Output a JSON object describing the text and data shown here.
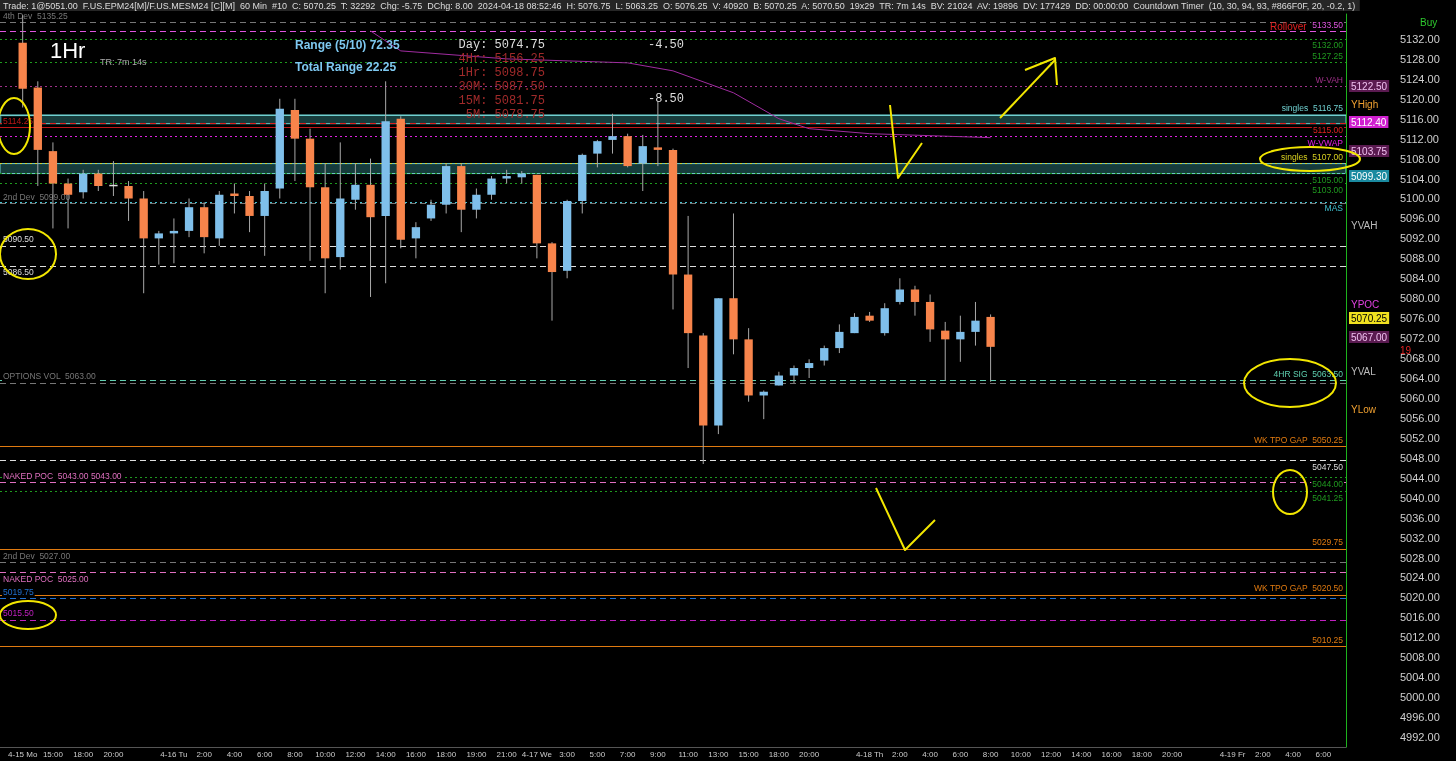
{
  "chart_data": {
    "type": "candlestick",
    "title": "1Hr",
    "subtitle": "Trade: 1@5051.00  F.US.EPM24[M]/F.US.MESM24 [C][M]  60 Min  #10  C: 5070.25  T: 32292  Chg: -5.75  DChg: 8.00  2024-04-18 08:52:46  H: 5076.75  L: 5063.25  O: 5076.25  V: 40920  B: 5070.25  A: 5070.50  19x29  TR: 7m 14s  BV: 21024  AV: 19896  DV: 177429  DD: 00:00:00  Countdown Timer  (10, 30, 94, 93, #866F0F, 20, -0.2, 1)",
    "annotations": [
      "TR: 7m 14s",
      "Range (5/10) 72.35",
      "Total Range 22.25",
      "Day: 5074.75",
      "4Hr: 5156.25",
      "1Hr: 5098.75",
      "30M: 5087.50",
      "15M: 5081.75",
      "5M: 5078.75",
      "-4.50",
      "-8.50",
      "Buy",
      "Rollover",
      "19",
      "5122.50",
      "YHigh",
      "5112.40",
      "5103.75",
      "5099.30",
      "YVAH",
      "YPOC",
      "5070.25",
      "5067.00",
      "YVAL",
      "YLow"
    ],
    "categories": [
      null,
      "4-15 Mo",
      null,
      "15:00",
      null,
      "18:00",
      null,
      "20:00",
      null,
      null,
      null,
      "4-16 Tu",
      null,
      "2:00",
      null,
      "4:00",
      null,
      "6:00",
      null,
      "8:00",
      null,
      "10:00",
      null,
      "12:00",
      null,
      "14:00",
      null,
      "16:00",
      null,
      "18:00",
      null,
      "19:00",
      null,
      "21:00",
      null,
      "4-17 We",
      null,
      "3:00",
      null,
      "5:00",
      null,
      "7:00",
      null,
      "9:00",
      null,
      "11:00",
      null,
      "13:00",
      null,
      "15:00",
      null,
      "18:00",
      null,
      "20:00",
      null,
      null,
      null,
      "4-18 Th",
      null,
      "2:00",
      null,
      "4:00",
      null,
      "6:00",
      null,
      "8:00",
      null,
      "10:00",
      null,
      "12:00",
      null,
      "14:00",
      null,
      "16:00",
      null,
      "18:00",
      null,
      "20:00",
      null,
      null,
      null,
      "4-19 Fr",
      null,
      "2:00",
      null,
      "4:00",
      null,
      "6:00",
      null
    ],
    "ohlc": [
      null,
      [
        5131.25,
        5136.75,
        5118.25,
        5122
      ],
      [
        5122.25,
        5123.5,
        5102.5,
        5109.75
      ],
      [
        5109.5,
        5111.25,
        5094,
        5103
      ],
      [
        5103,
        5104,
        5094,
        5100.75
      ],
      [
        5101.25,
        5105.75,
        5100,
        5105
      ],
      [
        5105,
        5105.75,
        5101.5,
        5102.5
      ],
      [
        5102.75,
        5107.5,
        5100.5,
        5102.75
      ],
      [
        5102.5,
        5103.5,
        5095.5,
        5100
      ],
      [
        5100,
        5101.5,
        5081,
        5092
      ],
      [
        5092,
        5093.5,
        5086.75,
        5093
      ],
      [
        5093,
        5096,
        5087,
        5093.5
      ],
      [
        5093.5,
        5100,
        5092.25,
        5098.25
      ],
      [
        5098.25,
        5099.25,
        5089,
        5092.25
      ],
      [
        5092,
        5101.5,
        5090.5,
        5100.75
      ],
      [
        5101,
        5103,
        5097,
        5100.5
      ],
      [
        5100.5,
        5101.5,
        5093.25,
        5096.5
      ],
      [
        5096.5,
        5103,
        5088.5,
        5101.5
      ],
      [
        5102,
        5120,
        5100,
        5118
      ],
      [
        5117.75,
        5120,
        5103.5,
        5112
      ],
      [
        5112,
        5114,
        5087.5,
        5102.25
      ],
      [
        5102.25,
        5107,
        5081,
        5088
      ],
      [
        5088.25,
        5111.25,
        5085.75,
        5100
      ],
      [
        5099.75,
        5107,
        5097.75,
        5102.75
      ],
      [
        5102.75,
        5108,
        5080.25,
        5096.25
      ],
      [
        5096.5,
        5123.5,
        5083,
        5115.5
      ],
      [
        5116,
        5116.5,
        5090,
        5091.75
      ],
      [
        5092,
        5095.25,
        5088,
        5094.25
      ],
      [
        5096,
        5099.75,
        5095.5,
        5098.75
      ],
      [
        5098.75,
        5107,
        5097,
        5106.5
      ],
      [
        5106.5,
        5107,
        5093.25,
        5097.75
      ],
      [
        5097.75,
        5102,
        5096,
        5100.75
      ],
      [
        5100.75,
        5104.5,
        5099.75,
        5104
      ],
      [
        5104,
        5105.75,
        5103,
        5104.5
      ],
      [
        5104.25,
        5105.5,
        5103,
        5105
      ],
      [
        5104.75,
        5104.75,
        5088,
        5091
      ],
      [
        5091,
        5091.25,
        5075.5,
        5085.25
      ],
      [
        5085.5,
        5099.75,
        5084,
        5099.5
      ],
      [
        5099.5,
        5109,
        5097,
        5108.75
      ],
      [
        5109,
        5111.75,
        5106.25,
        5111.5
      ],
      [
        5111.75,
        5117,
        5109,
        5112.5
      ],
      [
        5112.5,
        5113,
        5106.25,
        5106.5
      ],
      [
        5107,
        5112.75,
        5101.5,
        5110.5
      ],
      [
        5110.25,
        5119.5,
        5106.5,
        5109.75
      ],
      [
        5109.75,
        5110,
        5077.75,
        5084.75
      ],
      [
        5084.75,
        5096.5,
        5066,
        5073
      ],
      [
        5072.5,
        5073,
        5046.75,
        5054.5
      ],
      [
        5054.5,
        5080,
        5052.75,
        5080
      ],
      [
        5080,
        5097,
        5068.75,
        5071.75
      ],
      [
        5071.75,
        5074,
        5059.25,
        5060.5
      ],
      [
        5060.5,
        5061.5,
        5055.75,
        5061.25
      ],
      [
        5062.5,
        5065.25,
        5062.5,
        5064.5
      ],
      [
        5064.5,
        5066.5,
        5063,
        5066
      ],
      [
        5066,
        5067.75,
        5064,
        5067
      ],
      [
        5067.5,
        5070.5,
        5066.5,
        5070
      ],
      [
        5070,
        5074.75,
        5069,
        5073.25
      ],
      [
        5073,
        5077,
        5073,
        5076.25
      ],
      [
        5076.5,
        5077.25,
        5075.25,
        5075.5
      ],
      [
        5073,
        5079,
        5072.5,
        5078
      ],
      [
        5079.25,
        5084,
        5078.75,
        5081.75
      ],
      [
        5081.75,
        5082.5,
        5076.5,
        5079.25
      ],
      [
        5079.25,
        5080.75,
        5071.25,
        5073.75
      ],
      [
        5073.5,
        5075.25,
        5063.5,
        5071.75
      ],
      [
        5071.75,
        5076.5,
        5067.25,
        5073.25
      ],
      [
        5073.25,
        5079.25,
        5070.5,
        5075.5
      ],
      [
        5076.25,
        5076.75,
        5063.25,
        5070.25
      ],
      null,
      null,
      null,
      null,
      null,
      null,
      null,
      null,
      null,
      null,
      null,
      null,
      null,
      null,
      null,
      null,
      null,
      null,
      null,
      null,
      null,
      null,
      null
    ],
    "colors": [
      null,
      "#f7844b",
      "#f7844b",
      "#f7844b",
      "#f7844b",
      "#7fbfea",
      "#f7844b",
      "#dcdcdc",
      "#f7844b",
      "#f7844b",
      "#7fbfea",
      "#7fbfea",
      "#7fbfea",
      "#f7844b",
      "#7fbfea",
      "#f7844b",
      "#f7844b",
      "#7fbfea",
      "#7fbfea",
      "#f7844b",
      "#f7844b",
      "#f7844b",
      "#7fbfea",
      "#7fbfea",
      "#f7844b",
      "#7fbfea",
      "#f7844b",
      "#7fbfea",
      "#7fbfea",
      "#7fbfea",
      "#f7844b",
      "#7fbfea",
      "#7fbfea",
      "#7fbfea",
      "#7fbfea",
      "#f7844b",
      "#f7844b",
      "#7fbfea",
      "#7fbfea",
      "#7fbfea",
      "#7fbfea",
      "#f7844b",
      "#7fbfea",
      "#f7844b",
      "#f7844b",
      "#f7844b",
      "#f7844b",
      "#7fbfea",
      "#f7844b",
      "#f7844b",
      "#7fbfea",
      "#7fbfea",
      "#7fbfea",
      "#7fbfea",
      "#7fbfea",
      "#7fbfea",
      "#7fbfea",
      "#f7844b",
      "#7fbfea",
      "#7fbfea",
      "#f7844b",
      "#f7844b",
      "#f7844b",
      "#7fbfea",
      "#7fbfea",
      "#f7844b",
      null,
      null,
      null,
      null,
      null,
      null,
      null,
      null,
      null,
      null,
      null,
      null,
      null,
      null,
      null,
      null,
      null,
      null,
      null,
      null,
      null,
      null,
      null
    ],
    "series": [
      {
        "type": "line",
        "color": "#a02ca0",
        "values": [
          null,
          null,
          null,
          null,
          null,
          null,
          null,
          null,
          null,
          null,
          null,
          null,
          null,
          null,
          null,
          null,
          null,
          null,
          null,
          null,
          null,
          null,
          null,
          null,
          5133.6,
          null,
          5129.6,
          null,
          null,
          null,
          null,
          null,
          null,
          5128,
          null,
          null,
          null,
          null,
          null,
          null,
          null,
          5127.2,
          null,
          null,
          5125.6,
          null,
          null,
          null,
          5121.2,
          null,
          null,
          5116,
          null,
          5114,
          null,
          null,
          null,
          5113,
          null,
          null,
          null,
          null,
          null,
          null,
          null,
          5112.2,
          null,
          null,
          null,
          null,
          null,
          null,
          null,
          null,
          null,
          null,
          null,
          null,
          null,
          null,
          null,
          null,
          null,
          null,
          null,
          null,
          null,
          null,
          null
        ]
      }
    ],
    "ylim": [
      4990,
      5137
    ],
    "yticks": [
      {
        "value": 4992,
        "label": "4992.00"
      },
      {
        "value": 4996,
        "label": "4996.00"
      },
      {
        "value": 5000,
        "label": "5000.00"
      },
      {
        "value": 5004,
        "label": "5004.00"
      },
      {
        "value": 5008,
        "label": "5008.00"
      },
      {
        "value": 5012,
        "label": "5012.00"
      },
      {
        "value": 5016,
        "label": "5016.00"
      },
      {
        "value": 5020,
        "label": "5020.00"
      },
      {
        "value": 5024,
        "label": "5024.00"
      },
      {
        "value": 5028,
        "label": "5028.00"
      },
      {
        "value": 5032,
        "label": "5032.00"
      },
      {
        "value": 5036,
        "label": "5036.00"
      },
      {
        "value": 5040,
        "label": "5040.00"
      },
      {
        "value": 5044,
        "label": "5044.00"
      },
      {
        "value": 5048,
        "label": "5048.00"
      },
      {
        "value": 5052,
        "label": "5052.00"
      },
      {
        "value": 5056,
        "label": "5056.00"
      },
      {
        "value": 5060,
        "label": "5060.00"
      },
      {
        "value": 5064,
        "label": "5064.00"
      },
      {
        "value": 5068,
        "label": "5068.00"
      },
      {
        "value": 5072,
        "label": "5072.00"
      },
      {
        "value": 5076,
        "label": "5076.00"
      },
      {
        "value": 5080,
        "label": "5080.00"
      },
      {
        "value": 5084,
        "label": "5084.00"
      },
      {
        "value": 5088,
        "label": "5088.00"
      },
      {
        "value": 5092,
        "label": "5092.00"
      },
      {
        "value": 5096,
        "label": "5096.00"
      },
      {
        "value": 5100,
        "label": "5100.00"
      },
      {
        "value": 5104,
        "label": "5104.00"
      },
      {
        "value": 5108,
        "label": "5108.00"
      },
      {
        "value": 5112,
        "label": "5112.00"
      },
      {
        "value": 5116,
        "label": "5116.00"
      },
      {
        "value": 5120,
        "label": "5120.00"
      },
      {
        "value": 5124,
        "label": "5124.00"
      },
      {
        "value": 5128,
        "label": "5128.00"
      },
      {
        "value": 5132,
        "label": "5132.00"
      }
    ],
    "ref_lines": [
      {
        "axis": "y",
        "value": 5135.25,
        "label": "4th Dev  5135.25",
        "color": "#777777",
        "line_style": "dashed"
      },
      {
        "axis": "y",
        "value": 5133.5,
        "label": "5133.50",
        "color": "#e055e0",
        "line_style": "dashed"
      },
      {
        "axis": "y",
        "value": 5132,
        "label": "5132.00",
        "color": "#1f9a1f",
        "line_style": "dotted"
      },
      {
        "axis": "y",
        "value": 5127.25,
        "label": "5127.25",
        "color": "#1f9a1f",
        "line_style": "dotted"
      },
      {
        "axis": "y",
        "value": 5122.5,
        "label": "W-VAH",
        "color": "#a0308a",
        "line_style": "dotted"
      },
      {
        "axis": "y",
        "value": 5116.75,
        "label": "singles  5116.75",
        "color": "#6fd0d0",
        "line_style": "solid"
      },
      {
        "axis": "y",
        "value": 5115,
        "label": "5115.00",
        "color": "#e02020",
        "line_style": "dashed"
      },
      {
        "axis": "y",
        "value": 5114.25,
        "label": "5114.25",
        "color": "#c01818",
        "line_style": "solid"
      },
      {
        "axis": "y",
        "value": 5112.4,
        "label": "W-VWAP",
        "color": "#e020e0",
        "line_style": "dotted"
      },
      {
        "axis": "y",
        "value": 5107,
        "label": "singles  5107.00",
        "color": "#d8d020",
        "line_style": "dotted"
      },
      {
        "axis": "y",
        "value": 5105,
        "label": "5105.00",
        "color": "#1f9a1f",
        "line_style": "dotted"
      },
      {
        "axis": "y",
        "value": 5103,
        "label": "5103.00",
        "color": "#1f9a1f",
        "line_style": "dotted"
      },
      {
        "axis": "y",
        "value": 5099.3,
        "label": "MAS",
        "color": "#40c0d0",
        "line_style": "dotted"
      },
      {
        "axis": "y",
        "value": 5099,
        "label": "2nd Dev  5099.00",
        "color": "#777777",
        "line_style": "dashed"
      },
      {
        "axis": "y",
        "value": 5090.5,
        "label": "5090.50",
        "color": "#dddddd",
        "line_style": "dashed"
      },
      {
        "axis": "y",
        "value": 5086.5,
        "label": "5086.50",
        "color": "#dddddd",
        "line_style": "dashed"
      },
      {
        "axis": "y",
        "value": 5063.5,
        "label": "4HR SIG  5063.50",
        "color": "#5fd0b0",
        "line_style": "dashed"
      },
      {
        "axis": "y",
        "value": 5063,
        "label": "OPTIONS VOL  5063.00",
        "color": "#777777",
        "line_style": "dashed"
      },
      {
        "axis": "y",
        "value": 5050.25,
        "label": "WK TPO GAP  5050.25",
        "color": "#e07a10",
        "line_style": "solid"
      },
      {
        "axis": "y",
        "value": 5047.5,
        "label": "5047.50",
        "color": "#dddddd",
        "line_style": "dashed"
      },
      {
        "axis": "y",
        "value": 5044,
        "label": "5044.00",
        "color": "#1f9a1f",
        "line_style": "dotted"
      },
      {
        "axis": "y",
        "value": 5043,
        "label": "NAKED POC  5043.00 5043.00",
        "color": "#e070c0",
        "line_style": "dashed"
      },
      {
        "axis": "y",
        "value": 5041.25,
        "label": "5041.25",
        "color": "#1f9a1f",
        "line_style": "dotted"
      },
      {
        "axis": "y",
        "value": 5029.75,
        "label": "5029.75",
        "color": "#e07a10",
        "line_style": "solid"
      },
      {
        "axis": "y",
        "value": 5027,
        "label": "2nd Dev  5027.00",
        "color": "#777777",
        "line_style": "dashed"
      },
      {
        "axis": "y",
        "value": 5025,
        "label": "NAKED POC  5025.00",
        "color": "#e070c0",
        "line_style": "dashed"
      },
      {
        "axis": "y",
        "value": 5020.5,
        "label": "WK TPO GAP  5020.50",
        "color": "#e07a10",
        "line_style": "solid"
      },
      {
        "axis": "y",
        "value": 5019.75,
        "label": "5019.75",
        "color": "#2070d0",
        "line_style": "dashed"
      },
      {
        "axis": "y",
        "value": 5015.5,
        "label": "5015.50",
        "color": "#c020c0",
        "line_style": "dashed"
      },
      {
        "axis": "y",
        "value": 5010.25,
        "label": "5010.25",
        "color": "#e07a10",
        "line_style": "solid"
      }
    ],
    "bands": [
      {
        "axis": "y",
        "from": 5115,
        "to": 5116.75,
        "color": "#163c3c"
      },
      {
        "axis": "y",
        "from": 5105,
        "to": 5107,
        "color": "#163c3c"
      }
    ]
  }
}
